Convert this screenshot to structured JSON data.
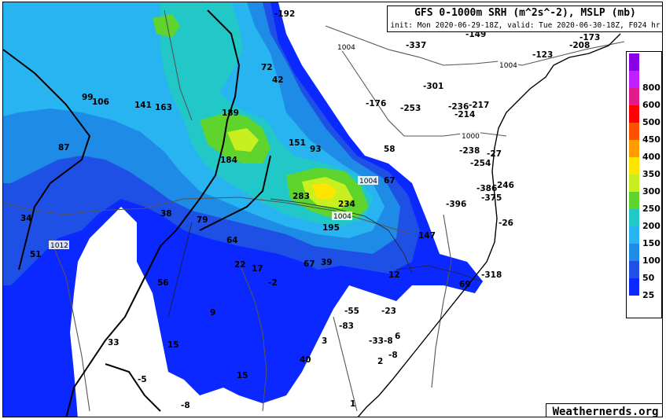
{
  "header": {
    "title": "GFS 0-1000m SRH (m^2s^-2), MSLP (mb)",
    "subtitle": "init: Mon 2020-06-29-18Z, valid: Tue 2020-06-30-18Z, F024 hr"
  },
  "credit": "Weathernerds.org",
  "colors": {
    "ocean": "#ffffff",
    "coast": "#000000",
    "border": "#000000",
    "isobar": "#555555"
  },
  "legend": {
    "levels": [
      {
        "label": "",
        "color": "#8a00e6"
      },
      {
        "label": "800",
        "color": "#c020ff"
      },
      {
        "label": "600",
        "color": "#e01c8c"
      },
      {
        "label": "500",
        "color": "#ff0000"
      },
      {
        "label": "450",
        "color": "#ff5000"
      },
      {
        "label": "400",
        "color": "#ff9c00"
      },
      {
        "label": "350",
        "color": "#ffe600"
      },
      {
        "label": "300",
        "color": "#c8f020"
      },
      {
        "label": "250",
        "color": "#5ed42c"
      },
      {
        "label": "200",
        "color": "#22c8c8"
      },
      {
        "label": "150",
        "color": "#28b4f0"
      },
      {
        "label": "100",
        "color": "#1e8ce6"
      },
      {
        "label": "50",
        "color": "#1e50e6"
      },
      {
        "label": "25",
        "color": "#0a28ff"
      },
      {
        "label": "",
        "color": "#ffffff"
      }
    ]
  },
  "isobar_labels": [
    "1004",
    "1004",
    "1000",
    "1004",
    "1004",
    "1012"
  ],
  "values": [
    "-192",
    "-149",
    "-173",
    "-208",
    "-123",
    "-337",
    "-301",
    "-176",
    "-253",
    "-236",
    "-217",
    "-214",
    "72",
    "42",
    "106",
    "99",
    "141",
    "163",
    "189",
    "151",
    "93",
    "184",
    "87",
    "58",
    "-238",
    "-27",
    "-254",
    "67",
    "-386",
    "246",
    "-375",
    "-396",
    "283",
    "234",
    "-26",
    "195",
    "34",
    "38",
    "79",
    "64",
    "147",
    "51",
    "22",
    "17",
    "67",
    "39",
    "12",
    "-318",
    "69",
    "-2",
    "56",
    "9",
    "-55",
    "-23",
    "-83",
    "3",
    "-33",
    "-8",
    "6",
    "33",
    "15",
    "40",
    "-8",
    "2",
    "15",
    "1",
    "-5",
    "-8"
  ]
}
